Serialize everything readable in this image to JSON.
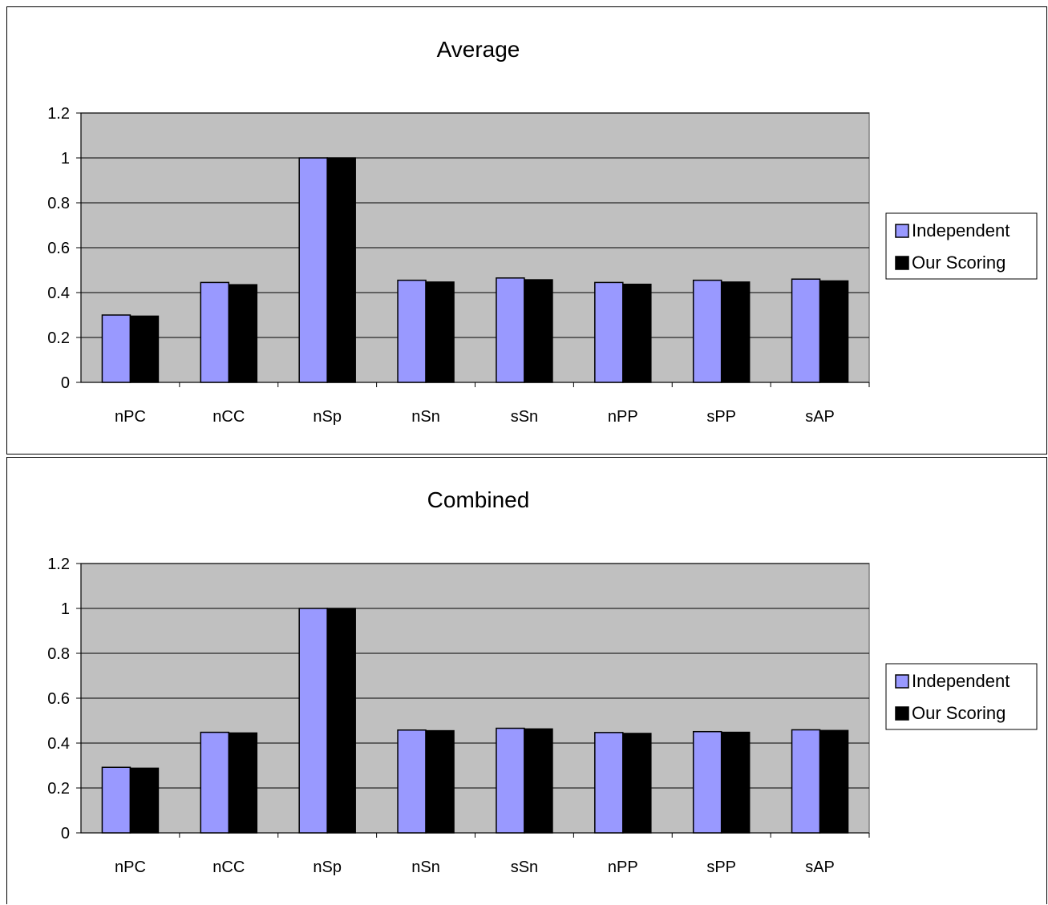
{
  "chart_data": [
    {
      "type": "bar",
      "title": "Average",
      "categories": [
        "nPC",
        "nCC",
        "nSp",
        "nSn",
        "sSn",
        "nPP",
        "sPP",
        "sAP"
      ],
      "series": [
        {
          "name": "Independent",
          "color": "#9999ff",
          "values": [
            0.3,
            0.445,
            1.0,
            0.455,
            0.465,
            0.445,
            0.455,
            0.46
          ]
        },
        {
          "name": "Our Scoring",
          "color": "#000000",
          "values": [
            0.295,
            0.435,
            1.0,
            0.447,
            0.457,
            0.437,
            0.447,
            0.452
          ]
        }
      ],
      "y_ticks": [
        "0",
        "0.2",
        "0.4",
        "0.6",
        "0.8",
        "1",
        "1.2"
      ],
      "ylim": [
        0,
        1.2
      ],
      "grid": true,
      "plot_background": "#c0c0c0",
      "legend_position": "right"
    },
    {
      "type": "bar",
      "title": "Combined",
      "categories": [
        "nPC",
        "nCC",
        "nSp",
        "nSn",
        "sSn",
        "nPP",
        "sPP",
        "sAP"
      ],
      "series": [
        {
          "name": "Independent",
          "color": "#9999ff",
          "values": [
            0.292,
            0.448,
            1.0,
            0.458,
            0.466,
            0.447,
            0.451,
            0.459
          ]
        },
        {
          "name": "Our Scoring",
          "color": "#000000",
          "values": [
            0.288,
            0.445,
            1.0,
            0.455,
            0.463,
            0.443,
            0.448,
            0.456
          ]
        }
      ],
      "y_ticks": [
        "0",
        "0.2",
        "0.4",
        "0.6",
        "0.8",
        "1",
        "1.2"
      ],
      "ylim": [
        0,
        1.2
      ],
      "grid": true,
      "plot_background": "#c0c0c0",
      "legend_position": "right"
    }
  ]
}
